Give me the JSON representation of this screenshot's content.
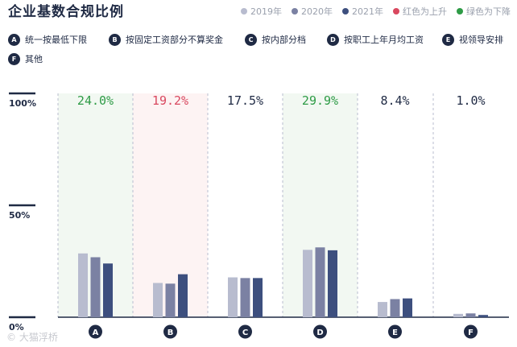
{
  "title": "企业基数合规比例",
  "legend": [
    {
      "label": "2019年",
      "color": "#b8bccf"
    },
    {
      "label": "2020年",
      "color": "#7b81a3"
    },
    {
      "label": "2021年",
      "color": "#3d4f7e"
    },
    {
      "label": "红色为上升",
      "color": "#d9485f"
    },
    {
      "label": "绿色为下降",
      "color": "#2e9b46"
    }
  ],
  "notes": [
    {
      "key": "A",
      "text": "统一按最低下限"
    },
    {
      "key": "B",
      "text": "按固定工资部分不算奖金"
    },
    {
      "key": "C",
      "text": "按内部分档"
    },
    {
      "key": "D",
      "text": "按职工上年月均工资"
    },
    {
      "key": "E",
      "text": "视领导安排"
    },
    {
      "key": "F",
      "text": "其他"
    }
  ],
  "watermark": "© 大猫浮桥",
  "colors": {
    "y2019": "#b8bccf",
    "y2020": "#7b81a3",
    "y2021": "#3d4f7e",
    "up": "#d9485f",
    "down": "#2e9b46",
    "neutral": "#1f2a44"
  },
  "chart_data": {
    "type": "bar",
    "categories": [
      "A",
      "B",
      "C",
      "D",
      "E",
      "F"
    ],
    "series": [
      {
        "name": "2019年",
        "values": [
          28.5,
          15.3,
          17.8,
          30.1,
          6.8,
          1.5
        ]
      },
      {
        "name": "2020年",
        "values": [
          26.8,
          15.0,
          17.5,
          31.2,
          8.1,
          1.7
        ]
      },
      {
        "name": "2021年",
        "values": [
          24.0,
          19.2,
          17.5,
          29.9,
          8.4,
          1.0
        ]
      }
    ],
    "labels": [
      "24.0%",
      "19.2%",
      "17.5%",
      "29.9%",
      "8.4%",
      "1.0%"
    ],
    "trend": [
      "down",
      "up",
      "neutral",
      "down",
      "neutral",
      "neutral"
    ],
    "yticks": [
      "100%",
      "50%",
      "0%"
    ],
    "ylim": [
      0,
      100
    ]
  }
}
